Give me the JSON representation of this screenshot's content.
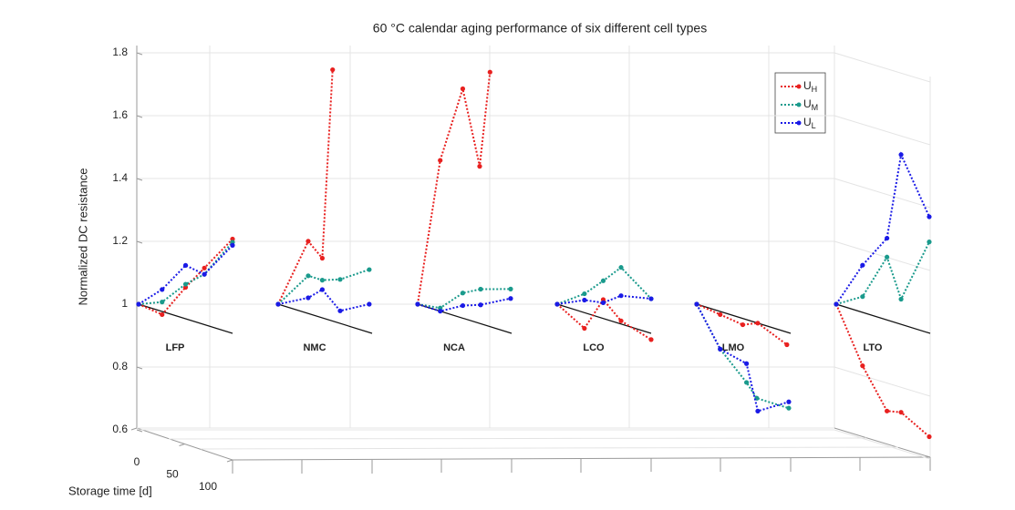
{
  "chart_data": {
    "type": "line3d",
    "title": "60 °C calendar aging performance of six different cell types",
    "ylabel": "Normalized DC resistance",
    "xlabel": "Storage time [d]",
    "ylim": [
      0.6,
      1.8
    ],
    "yticks": [
      0.6,
      0.8,
      1,
      1.2,
      1.4,
      1.6,
      1.8
    ],
    "xlim": [
      0,
      100
    ],
    "xticks": [
      0,
      50,
      100
    ],
    "grid": true,
    "legend": "upper right",
    "series_styles": [
      {
        "symbol": "U",
        "subscript": "H",
        "color": "#e8201f"
      },
      {
        "symbol": "U",
        "subscript": "M",
        "color": "#1a9a8c"
      },
      {
        "symbol": "U",
        "subscript": "L",
        "color": "#1a1ae6"
      }
    ],
    "groups": [
      {
        "name": "LFP",
        "series": [
          {
            "x": [
              0,
              25,
              50,
              70,
              100
            ],
            "values": [
              1,
              0.99,
              1.1,
              1.18,
              1.3
            ]
          },
          {
            "x": [
              0,
              25,
              50,
              70,
              100
            ],
            "values": [
              1,
              1.03,
              1.11,
              1.16,
              1.29
            ]
          },
          {
            "x": [
              0,
              25,
              50,
              70,
              100
            ],
            "values": [
              1,
              1.07,
              1.17,
              1.16,
              1.28
            ]
          }
        ]
      },
      {
        "name": "NMC",
        "series": [
          {
            "x": [
              0,
              32,
              47,
              58
            ],
            "values": [
              1,
              1.23,
              1.19,
              1.8
            ]
          },
          {
            "x": [
              0,
              32,
              47,
              66,
              97
            ],
            "values": [
              1,
              1.12,
              1.12,
              1.14,
              1.2
            ]
          },
          {
            "x": [
              0,
              32,
              47,
              66,
              97
            ],
            "values": [
              1,
              1.05,
              1.09,
              1.04,
              1.09
            ]
          }
        ]
      },
      {
        "name": "NCA",
        "series": [
          {
            "x": [
              0,
              24,
              48,
              66,
              77
            ],
            "values": [
              1,
              1.48,
              1.73,
              1.5,
              1.81
            ]
          },
          {
            "x": [
              0,
              24,
              48,
              67,
              99
            ],
            "values": [
              1,
              1.01,
              1.08,
              1.11,
              1.14
            ]
          },
          {
            "x": [
              0,
              24,
              48,
              67,
              99
            ],
            "values": [
              1,
              1.0,
              1.04,
              1.06,
              1.11
            ]
          }
        ]
      },
      {
        "name": "LCO",
        "series": [
          {
            "x": [
              0,
              29,
              49,
              68,
              100
            ],
            "values": [
              1,
              0.95,
              1.06,
              1.01,
              0.98
            ]
          },
          {
            "x": [
              0,
              29,
              49,
              68,
              100
            ],
            "values": [
              1,
              1.06,
              1.12,
              1.18,
              1.11
            ]
          },
          {
            "x": [
              0,
              29,
              49,
              68,
              100
            ],
            "values": [
              1,
              1.04,
              1.05,
              1.09,
              1.11
            ]
          }
        ]
      },
      {
        "name": "LMO",
        "series": [
          {
            "x": [
              0,
              25,
              49,
              65,
              96
            ],
            "values": [
              1,
              0.99,
              0.98,
              1.0,
              0.96
            ]
          },
          {
            "x": [
              0,
              25,
              53,
              64,
              98
            ],
            "values": [
              1,
              0.88,
              0.8,
              0.76,
              0.76
            ]
          },
          {
            "x": [
              0,
              25,
              53,
              65,
              98
            ],
            "values": [
              1,
              0.88,
              0.86,
              0.72,
              0.78
            ]
          }
        ]
      },
      {
        "name": "LTO",
        "series": [
          {
            "x": [
              0,
              28,
              54,
              69,
              99
            ],
            "values": [
              1,
              0.83,
              0.71,
              0.72,
              0.67
            ]
          },
          {
            "x": [
              0,
              28,
              54,
              69,
              99
            ],
            "values": [
              1,
              1.05,
              1.2,
              1.08,
              1.29
            ]
          },
          {
            "x": [
              0,
              28,
              54,
              69,
              99
            ],
            "values": [
              1,
              1.15,
              1.26,
              1.54,
              1.37
            ]
          }
        ]
      }
    ]
  }
}
